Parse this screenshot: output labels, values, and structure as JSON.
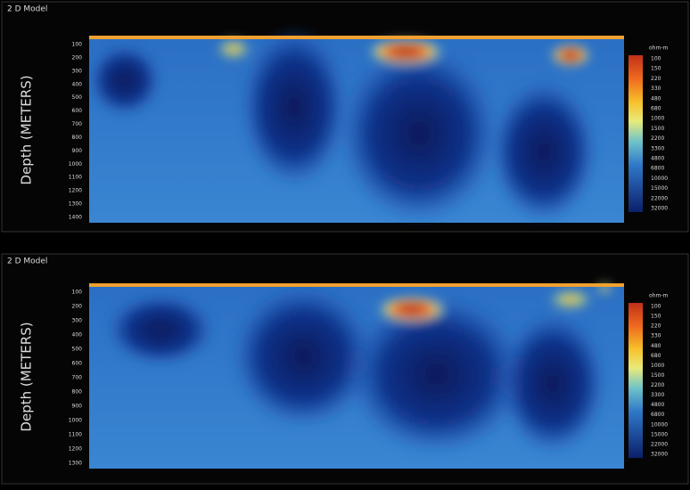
{
  "panels": [
    {
      "title": "2 D Model",
      "y_label": "Depth (METERS)",
      "depth_labels": [
        "100",
        "200",
        "300",
        "400",
        "500",
        "600",
        "700",
        "800",
        "900",
        "1000",
        "1100",
        "1200",
        "1300",
        "1400"
      ],
      "legend_title": "ohm-m",
      "legend_labels": [
        "100",
        "150",
        "220",
        "330",
        "480",
        "680",
        "1000",
        "1500",
        "2200",
        "3300",
        "4800",
        "6800",
        "10000",
        "15000",
        "22000",
        "32000"
      ]
    },
    {
      "title": "2 D Model",
      "y_label": "Depth (METERS)",
      "depth_labels": [
        "100",
        "200",
        "300",
        "400",
        "500",
        "600",
        "700",
        "800",
        "900",
        "1000",
        "1100",
        "1200",
        "1300"
      ],
      "legend_title": "ohm-m",
      "legend_labels": [
        "100",
        "150",
        "220",
        "330",
        "480",
        "680",
        "1000",
        "1500",
        "2200",
        "3300",
        "4800",
        "6800",
        "10000",
        "15000",
        "22000",
        "32000"
      ]
    }
  ]
}
